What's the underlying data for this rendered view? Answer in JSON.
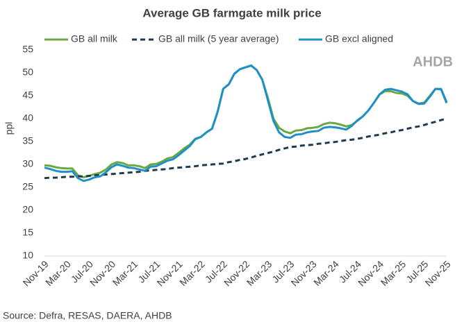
{
  "chart_data": {
    "type": "line",
    "title": "Average GB farmgate milk price",
    "y_label": "ppl",
    "source": "Source: Defra, RESAS, DAERA, AHDB",
    "logo": "AHDB",
    "categories": [
      "Nov-19",
      null,
      null,
      null,
      "Mar-20",
      null,
      null,
      null,
      "Jul-20",
      null,
      null,
      null,
      "Nov-20",
      null,
      null,
      null,
      "Mar-21",
      null,
      null,
      null,
      "Jul-21",
      null,
      null,
      null,
      "Nov-21",
      null,
      null,
      null,
      "Mar-22",
      null,
      null,
      null,
      "Jul-22",
      null,
      null,
      null,
      "Nov-22",
      null,
      null,
      null,
      "Mar-23",
      null,
      null,
      null,
      "Jul-23",
      null,
      null,
      null,
      "Nov-23",
      null,
      null,
      null,
      "Mar-24",
      null,
      null,
      null,
      "Jul-24",
      null,
      null,
      null,
      "Nov-24",
      null,
      null,
      null,
      "Mar-25",
      null,
      null,
      null,
      "Jul-25",
      null,
      null,
      null,
      "Nov-25"
    ],
    "series": [
      {
        "name": "GB all milk",
        "color": "#6aa842",
        "dash": false,
        "values": [
          29.8,
          29.7,
          29.4,
          29.2,
          29.1,
          29.1,
          27.6,
          27.2,
          27.5,
          27.9,
          28.2,
          28.9,
          30.0,
          30.5,
          30.3,
          29.8,
          29.8,
          29.6,
          29.2,
          30.0,
          30.1,
          30.6,
          31.3,
          31.6,
          32.5,
          33.5,
          34.3,
          35.6,
          36.0,
          37.0,
          37.8,
          41.5,
          46.5,
          47.5,
          49.8,
          50.8,
          51.2,
          51.6,
          50.6,
          48.5,
          44.5,
          40.0,
          38.0,
          37.2,
          36.8,
          37.4,
          37.5,
          37.9,
          38.0,
          38.2,
          38.8,
          39.1,
          39.0,
          38.7,
          38.3,
          38.6,
          39.5,
          40.5,
          41.8,
          43.5,
          45.3,
          46.0,
          46.0,
          45.6,
          45.5,
          45.0,
          43.8,
          43.3,
          43.5,
          45.0,
          46.5,
          46.5,
          43.6
        ]
      },
      {
        "name": "GB all milk (5 year average)",
        "color": "#1f3a4d",
        "dash": true,
        "values": [
          27.0,
          27.1,
          27.1,
          27.2,
          27.3,
          27.3,
          27.4,
          27.4,
          27.5,
          27.6,
          27.7,
          27.8,
          27.9,
          28.0,
          28.1,
          28.2,
          28.3,
          28.4,
          28.6,
          28.7,
          28.8,
          28.9,
          29.0,
          29.2,
          29.3,
          29.4,
          29.5,
          29.6,
          29.8,
          29.9,
          30.0,
          30.1,
          30.2,
          30.5,
          30.7,
          31.0,
          31.2,
          31.5,
          31.9,
          32.2,
          32.5,
          32.8,
          33.2,
          33.5,
          33.8,
          33.9,
          34.1,
          34.2,
          34.3,
          34.5,
          34.6,
          34.8,
          34.9,
          35.1,
          35.3,
          35.4,
          35.6,
          35.8,
          36.1,
          36.3,
          36.5,
          36.8,
          37.0,
          37.3,
          37.5,
          37.8,
          38.1,
          38.3,
          38.6,
          39.0,
          39.3,
          39.7,
          40.0
        ]
      },
      {
        "name": "GB excl aligned",
        "color": "#1f8fc8",
        "dash": false,
        "values": [
          29.3,
          29.0,
          28.6,
          28.4,
          28.4,
          28.5,
          27.0,
          26.4,
          26.7,
          27.2,
          27.4,
          28.3,
          29.4,
          30.0,
          29.7,
          29.3,
          29.2,
          28.9,
          28.6,
          29.5,
          29.6,
          30.2,
          30.8,
          31.1,
          32.0,
          33.0,
          34.0,
          35.5,
          36.0,
          37.0,
          37.8,
          41.5,
          46.5,
          47.5,
          49.8,
          50.8,
          51.2,
          51.6,
          50.6,
          48.5,
          44.0,
          39.5,
          37.0,
          36.0,
          35.8,
          36.5,
          36.6,
          37.0,
          37.2,
          37.3,
          38.0,
          38.2,
          38.1,
          37.9,
          37.6,
          38.4,
          39.6,
          40.5,
          41.8,
          43.5,
          45.3,
          46.3,
          46.5,
          46.2,
          45.9,
          45.3,
          43.8,
          43.2,
          43.3,
          44.8,
          46.5,
          46.4,
          43.4
        ]
      }
    ],
    "ylim": [
      10,
      55
    ],
    "yticks": [
      10,
      15,
      20,
      25,
      30,
      35,
      40,
      45,
      50,
      55
    ],
    "grid": false
  }
}
